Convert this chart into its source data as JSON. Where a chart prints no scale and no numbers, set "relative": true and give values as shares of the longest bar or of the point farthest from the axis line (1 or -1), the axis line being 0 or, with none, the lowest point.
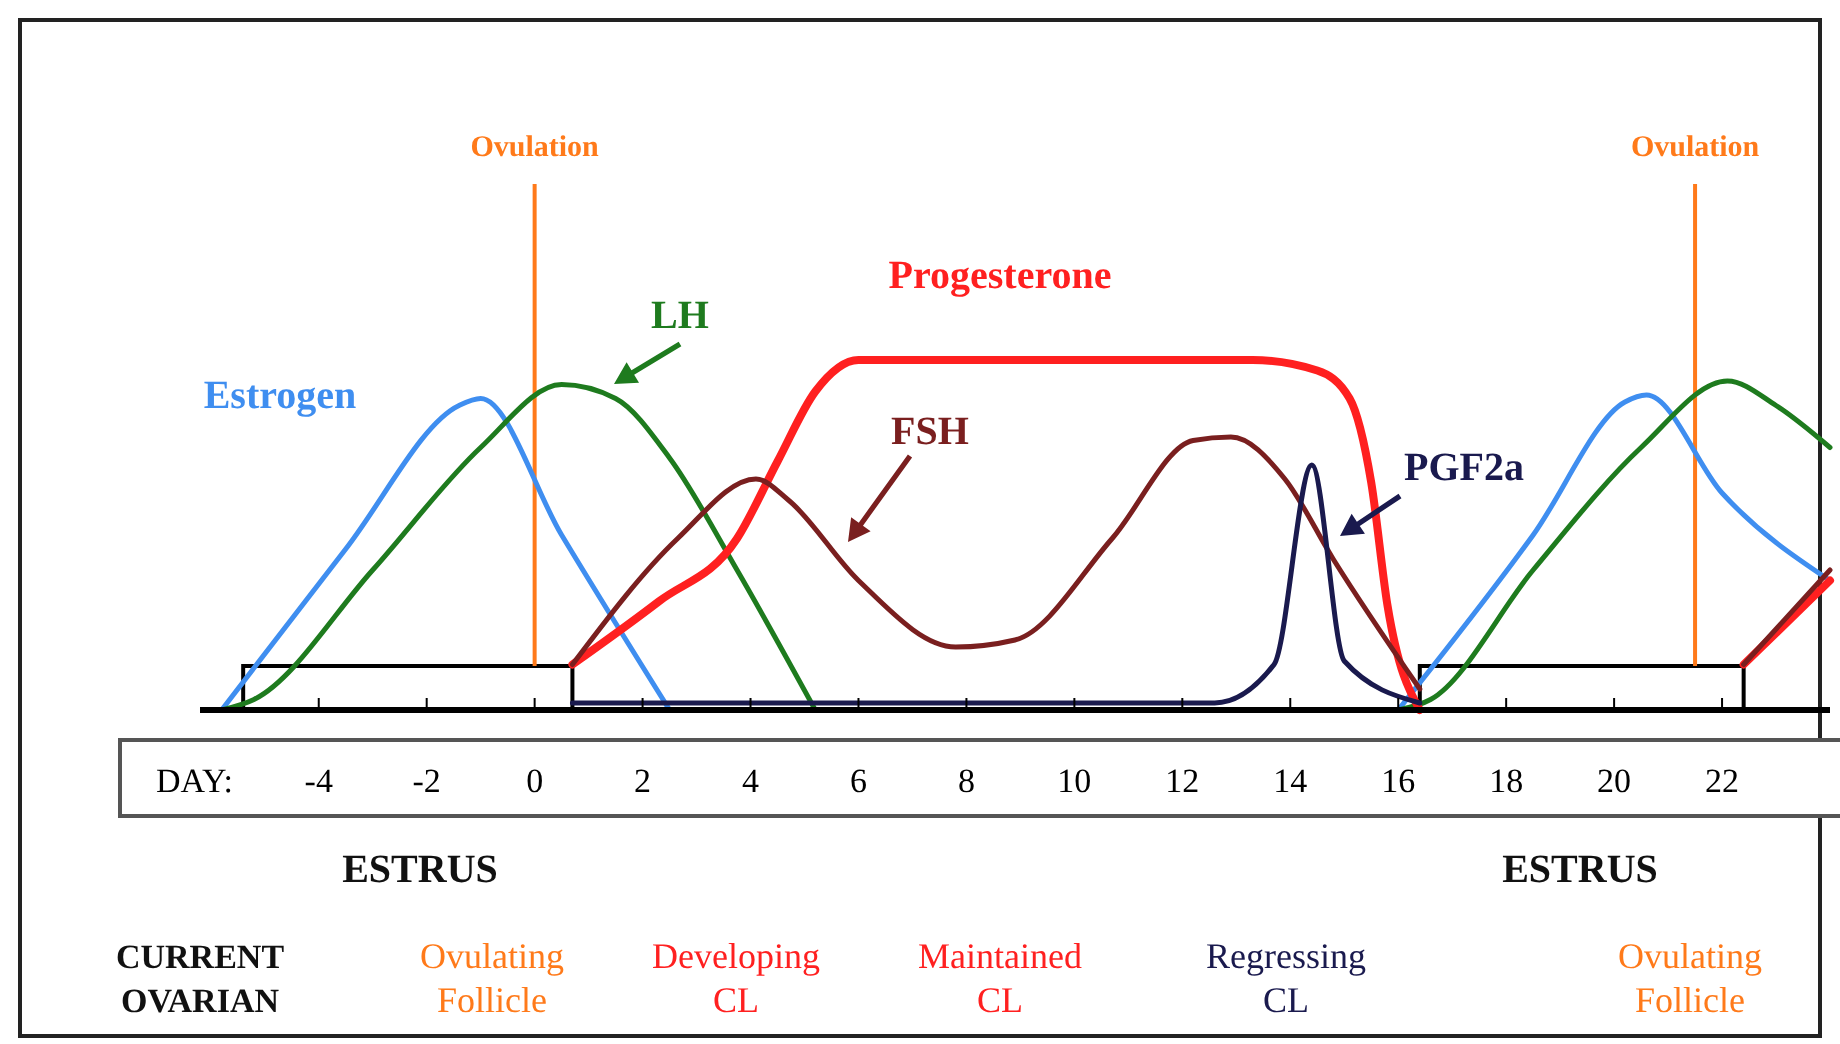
{
  "chart_data": {
    "type": "line",
    "relative": true,
    "xlabel": "DAY:",
    "xlim": [
      -6.2,
      24
    ],
    "xticks": [
      -4,
      -2,
      0,
      2,
      4,
      6,
      8,
      10,
      12,
      14,
      16,
      18,
      20,
      22
    ],
    "grid": false,
    "line_style": "solid",
    "marker": "none",
    "series": [
      {
        "name": "Estrogen",
        "color": "#3f8ef0",
        "x": [
          -5.8,
          -3.5,
          -1.4,
          -1.0,
          0.5,
          2.5,
          10,
          16,
          18.5,
          20.2,
          20.6,
          22,
          24
        ],
        "values": [
          0,
          0.46,
          0.87,
          0.89,
          0.5,
          0,
          null,
          0,
          0.5,
          0.88,
          0.9,
          0.62,
          0.37
        ]
      },
      {
        "name": "LH",
        "color": "#1e7b1e",
        "x": [
          -5.8,
          -5.2,
          -3,
          -1,
          0.5,
          1.5,
          2.5,
          3.75,
          5.2,
          10,
          16,
          16.6,
          18.5,
          20.5,
          22.1,
          23,
          24
        ],
        "values": [
          0,
          0.03,
          0.4,
          0.75,
          0.93,
          0.89,
          0.72,
          0.4,
          0,
          null,
          0,
          0.03,
          0.4,
          0.75,
          0.94,
          0.87,
          0.75
        ]
      },
      {
        "name": "Progesterone",
        "color": "#ff2020",
        "x": [
          0.7,
          2.3,
          3.75,
          4.5,
          5.2,
          6,
          13.3,
          14.5,
          15.1,
          15.5,
          15.8,
          16.4,
          19,
          22.4,
          24
        ],
        "values": [
          0.13,
          0.31,
          0.49,
          0.71,
          0.91,
          1,
          1,
          0.97,
          0.89,
          0.65,
          0.3,
          0,
          null,
          0.13,
          0.37
        ]
      },
      {
        "name": "FSH",
        "color": "#7a1f1f",
        "x": [
          0.7,
          2.65,
          4.1,
          4.7,
          6,
          7.8,
          8.9,
          10.7,
          12.2,
          12.9,
          13.9,
          14.8,
          16.4,
          19,
          22.4,
          24
        ],
        "values": [
          0.13,
          0.49,
          0.66,
          0.6,
          0.37,
          0.18,
          0.2,
          0.49,
          0.77,
          0.78,
          0.66,
          0.43,
          0.06,
          null,
          0.13,
          0.4
        ]
      },
      {
        "name": "PGF2a",
        "color": "#1a1a4e",
        "x": [
          0.7,
          12.6,
          13.7,
          14.4,
          15,
          16.4
        ],
        "values": [
          0.02,
          0.02,
          0.13,
          0.7,
          0.14,
          0.02
        ]
      }
    ],
    "ref_lines": [
      {
        "axis": "x",
        "value": 0,
        "label": "Ovulation",
        "color": "#ff7a1a"
      },
      {
        "axis": "x",
        "value": 21.5,
        "label": "Ovulation",
        "color": "#ff7a1a"
      }
    ],
    "bands": [
      {
        "axis": "x",
        "from": -5.4,
        "to": 0.7
      },
      {
        "axis": "x",
        "from": 16.4,
        "to": 22.4
      }
    ],
    "annotations": [
      "ESTRUS",
      "ESTRUS",
      "CURRENT OVARIAN",
      "Ovulating Follicle",
      "Developing CL",
      "Maintained CL",
      "Regressing CL",
      "Ovulating Follicle"
    ]
  }
}
